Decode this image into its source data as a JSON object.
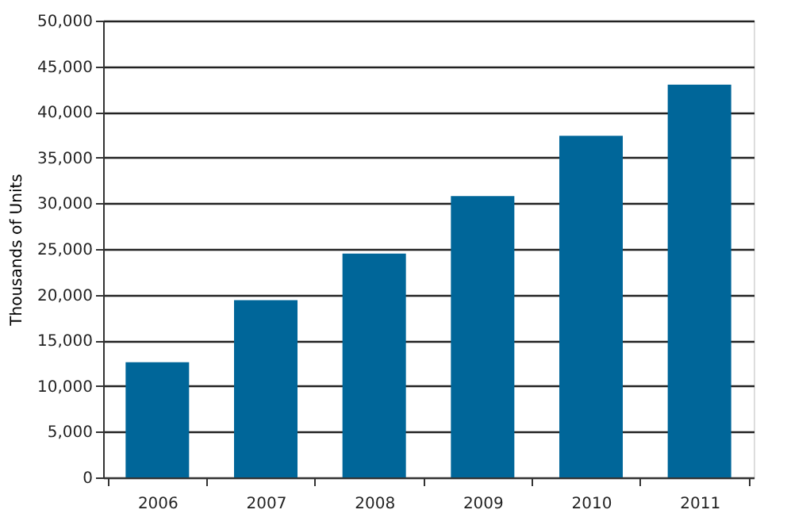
{
  "chart_data": {
    "type": "bar",
    "categories": [
      "2006",
      "2007",
      "2008",
      "2009",
      "2010",
      "2011"
    ],
    "values": [
      12600,
      19400,
      24500,
      30800,
      37400,
      43000
    ],
    "color": "#006699",
    "ylabel": "Thousands of Units",
    "ylim": [
      0,
      50000
    ],
    "yticks": [
      0,
      {
        "value": 5000,
        "label": "5,000"
      },
      {
        "value": 10000,
        "label": "10,000"
      },
      {
        "value": 15000,
        "label": "15,000"
      },
      {
        "value": 20000,
        "label": "20,000"
      },
      {
        "value": 25000,
        "label": "25,000"
      },
      {
        "value": 30000,
        "label": "30,000"
      },
      {
        "value": 35000,
        "label": "35,000"
      },
      {
        "value": 40000,
        "label": "40,000"
      },
      {
        "value": 45000,
        "label": "45,000"
      },
      {
        "value": 50000,
        "label": "50,000"
      }
    ],
    "grid": "y"
  }
}
